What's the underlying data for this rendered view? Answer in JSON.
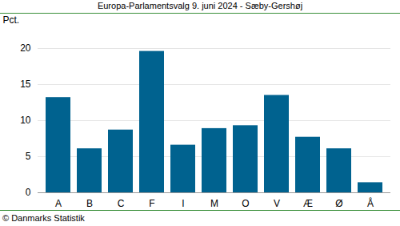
{
  "chart_data": {
    "type": "bar",
    "title": "Europa-Parlamentsvalg 9. juni 2024 - Sæby-Gershøj",
    "y_label": "Pct.",
    "caption": "© Danmarks Statistik",
    "categories": [
      "A",
      "B",
      "C",
      "F",
      "I",
      "M",
      "O",
      "V",
      "Æ",
      "Ø",
      "Å"
    ],
    "values": [
      13.2,
      6.1,
      8.7,
      19.6,
      6.6,
      8.9,
      9.3,
      13.5,
      7.7,
      6.1,
      1.4
    ],
    "color": "#00628f",
    "ylim": [
      0,
      20
    ],
    "yticks": [
      0,
      5,
      10,
      15,
      20
    ],
    "grid": true
  }
}
